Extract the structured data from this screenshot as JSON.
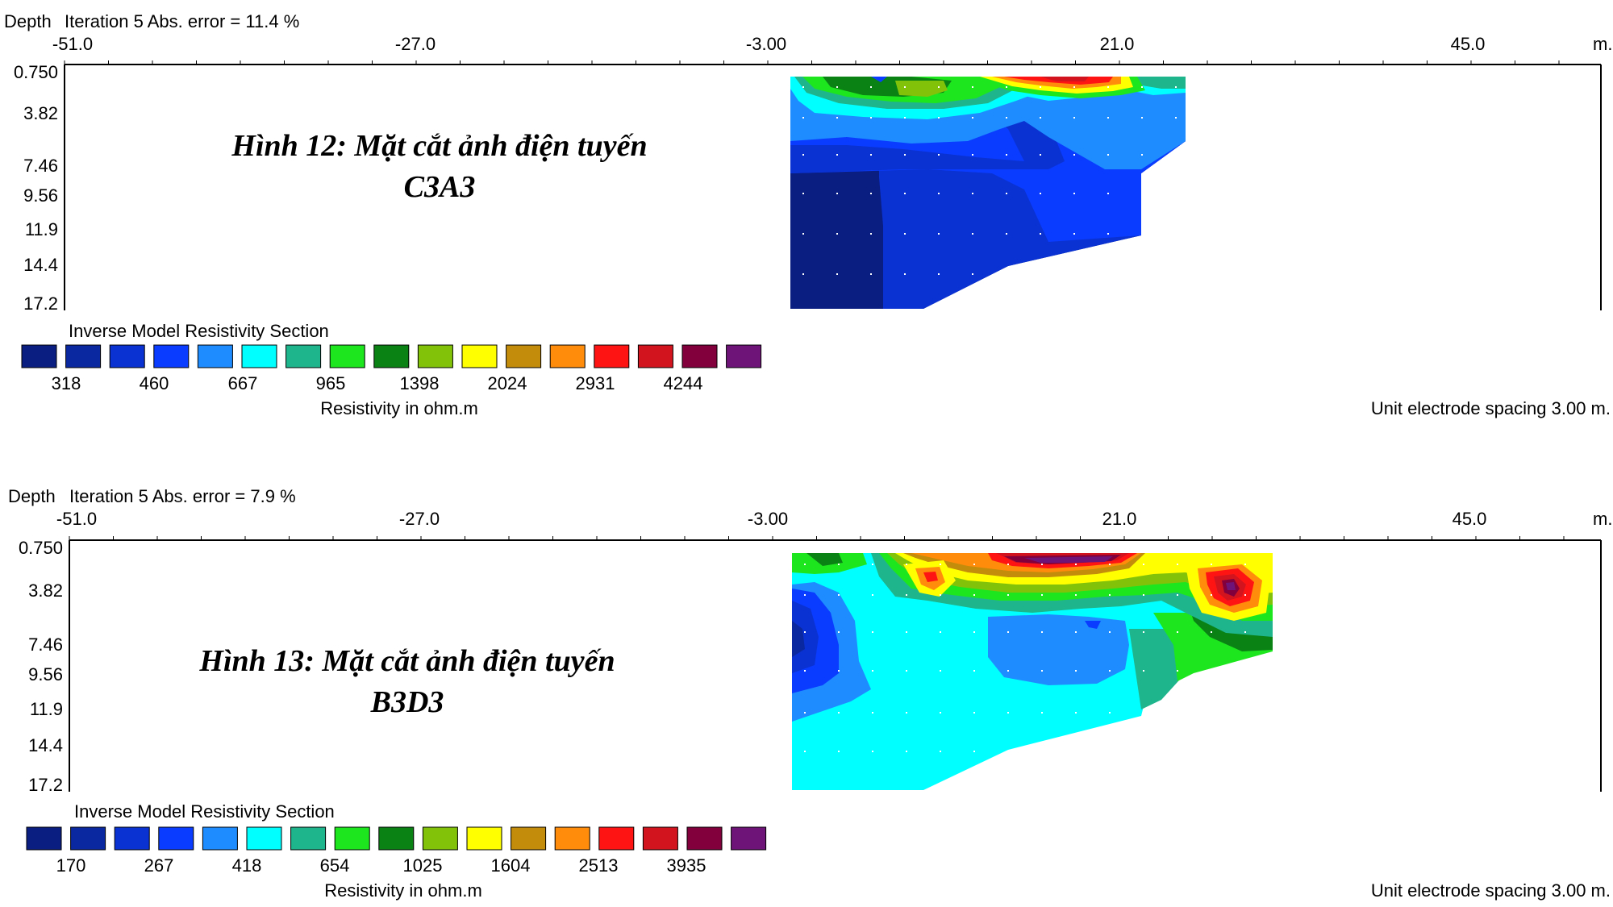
{
  "chart_data": [
    {
      "type": "heatmap",
      "header_depth": "Depth",
      "iteration_text": "Iteration 5 Abs. error = 11.4 %",
      "caption_line1": "Hình 12: Mặt cắt ảnh điện tuyến",
      "caption_line2": "C3A3",
      "x_ticks": [
        "-51.0",
        "-27.0",
        "-3.00",
        "21.0",
        "45.0"
      ],
      "x_tick_values": [
        -51,
        -27,
        -3,
        21,
        45
      ],
      "x_unit": "m.",
      "xlim": [
        -51,
        57
      ],
      "y_ticks": [
        "0.750",
        "3.82",
        "7.46",
        "9.56",
        "11.9",
        "14.4",
        "17.2"
      ],
      "y_tick_values": [
        0.75,
        3.82,
        7.46,
        9.56,
        11.9,
        14.4,
        17.2
      ],
      "ylim": [
        0.75,
        17.2
      ],
      "legend_title": "Inverse Model Resistivity Section",
      "legend_labels": [
        "318",
        "460",
        "667",
        "965",
        "1398",
        "2024",
        "2931",
        "4244"
      ],
      "legend_colors": [
        "#0a1e82",
        "#0a28a0",
        "#0a32d2",
        "#0a3cff",
        "#1e8cff",
        "#00ffff",
        "#1eb48c",
        "#1ee61e",
        "#0a8214",
        "#82c30a",
        "#ffff00",
        "#c38c0a",
        "#ff8c0a",
        "#ff1414",
        "#d2141e",
        "#82003c",
        "#6e1478"
      ],
      "resistivity_label": "Resistivity in ohm.m",
      "spacing_label": "Unit electrode spacing 3.00 m."
    },
    {
      "type": "heatmap",
      "header_depth": "Depth",
      "iteration_text": "Iteration 5 Abs. error = 7.9 %",
      "caption_line1": "Hình 13: Mặt cắt ảnh điện tuyến",
      "caption_line2": "B3D3",
      "x_ticks": [
        "-51.0",
        "-27.0",
        "-3.00",
        "21.0",
        "45.0"
      ],
      "x_tick_values": [
        -51,
        -27,
        -3,
        21,
        45
      ],
      "x_unit": "m.",
      "xlim": [
        -51,
        57
      ],
      "y_ticks": [
        "0.750",
        "3.82",
        "7.46",
        "9.56",
        "11.9",
        "14.4",
        "17.2"
      ],
      "y_tick_values": [
        0.75,
        3.82,
        7.46,
        9.56,
        11.9,
        14.4,
        17.2
      ],
      "ylim": [
        0.75,
        17.2
      ],
      "legend_title": "Inverse Model Resistivity Section",
      "legend_labels": [
        "170",
        "267",
        "418",
        "654",
        "1025",
        "1604",
        "2513",
        "3935"
      ],
      "legend_colors": [
        "#0a1e82",
        "#0a28a0",
        "#0a32d2",
        "#0a3cff",
        "#1e8cff",
        "#00ffff",
        "#1eb48c",
        "#1ee61e",
        "#0a8214",
        "#82c30a",
        "#ffff00",
        "#c38c0a",
        "#ff8c0a",
        "#ff1414",
        "#d2141e",
        "#82003c",
        "#6e1478"
      ],
      "resistivity_label": "Resistivity in ohm.m",
      "spacing_label": "Unit electrode spacing 3.00 m."
    }
  ]
}
